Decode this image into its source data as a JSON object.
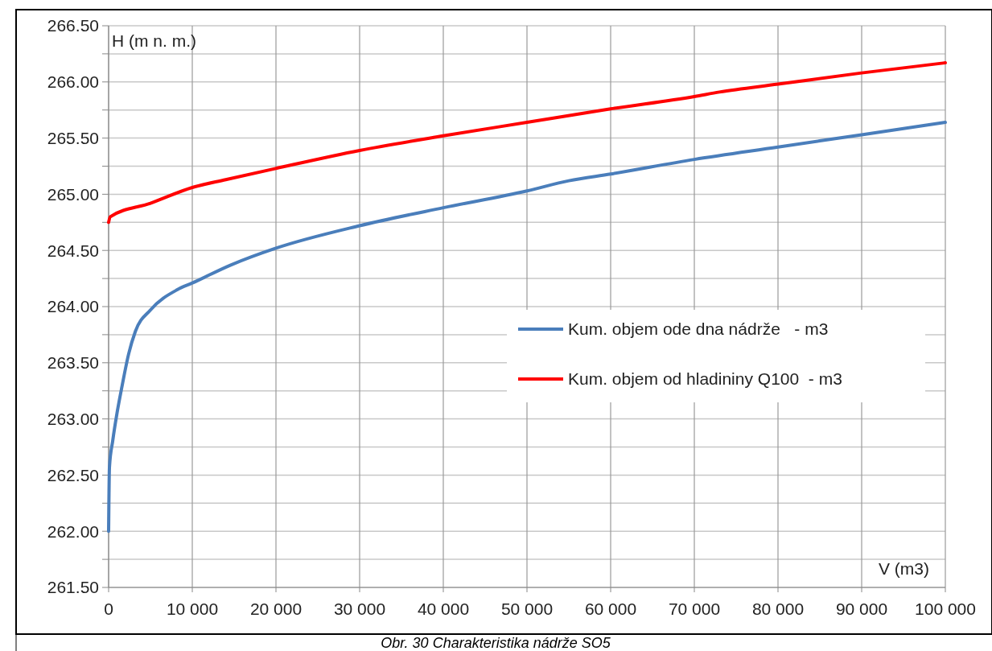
{
  "chart_data": {
    "type": "line",
    "xlabel": "V (m3)",
    "ylabel": "H (m n. m.)",
    "annotations": [
      "Obr. 30 Charakteristika nádrže SO5"
    ],
    "xlim": [
      0,
      100000
    ],
    "xticks": [
      {
        "value": 0,
        "label": "0"
      },
      {
        "value": 10000,
        "label": "10 000"
      },
      {
        "value": 20000,
        "label": "20 000"
      },
      {
        "value": 30000,
        "label": "30 000"
      },
      {
        "value": 40000,
        "label": "40 000"
      },
      {
        "value": 50000,
        "label": "50 000"
      },
      {
        "value": 60000,
        "label": "60 000"
      },
      {
        "value": 70000,
        "label": "70 000"
      },
      {
        "value": 80000,
        "label": "80 000"
      },
      {
        "value": 90000,
        "label": "90 000"
      },
      {
        "value": 100000,
        "label": "100 000"
      }
    ],
    "ylim": [
      261.5,
      266.5
    ],
    "yticks": [
      {
        "value": 261.5,
        "label": "261.50"
      },
      {
        "value": 261.75,
        "label": null
      },
      {
        "value": 262,
        "label": "262.00"
      },
      {
        "value": 262.25,
        "label": null
      },
      {
        "value": 262.5,
        "label": "262.50"
      },
      {
        "value": 262.75,
        "label": null
      },
      {
        "value": 263,
        "label": "263.00"
      },
      {
        "value": 263.25,
        "label": null
      },
      {
        "value": 263.5,
        "label": "263.50"
      },
      {
        "value": 263.75,
        "label": null
      },
      {
        "value": 264,
        "label": "264.00"
      },
      {
        "value": 264.25,
        "label": null
      },
      {
        "value": 264.5,
        "label": "264.50"
      },
      {
        "value": 264.75,
        "label": null
      },
      {
        "value": 265,
        "label": "265.00"
      },
      {
        "value": 265.25,
        "label": null
      },
      {
        "value": 265.5,
        "label": "265.50"
      },
      {
        "value": 265.75,
        "label": null
      },
      {
        "value": 266,
        "label": "266.00"
      },
      {
        "value": 266.25,
        "label": null
      },
      {
        "value": 266.5,
        "label": "266.50"
      }
    ],
    "grid": true,
    "legend": "right",
    "marker": "none",
    "line_style": "solid",
    "series": [
      {
        "name": "Kum. objem ode dna nádrže   - m3",
        "color": "#4a7ebb",
        "x": [
          0,
          100,
          500,
          1000,
          1600,
          2400,
          3200,
          5000,
          8200,
          10000,
          14600,
          20000,
          30000,
          40000,
          50000,
          55000,
          60000,
          70000,
          80000,
          90000,
          100000
        ],
        "values": [
          262.0,
          262.57,
          262.81,
          263.05,
          263.29,
          263.58,
          263.78,
          263.97,
          264.15,
          264.21,
          264.37,
          264.52,
          264.72,
          264.88,
          265.03,
          265.12,
          265.18,
          265.31,
          265.42,
          265.53,
          265.64
        ]
      },
      {
        "name": "Kum. objem od hladininy Q100  - m3",
        "color": "#ff0000",
        "x": [
          0,
          200,
          5000,
          10000,
          14000,
          20000,
          30000,
          40000,
          50000,
          60000,
          70000,
          73000,
          80000,
          90000,
          100000
        ],
        "values": [
          264.75,
          264.8,
          264.92,
          265.06,
          265.13,
          265.23,
          265.39,
          265.52,
          265.64,
          265.76,
          265.87,
          265.91,
          265.98,
          266.08,
          266.17
        ]
      }
    ]
  }
}
